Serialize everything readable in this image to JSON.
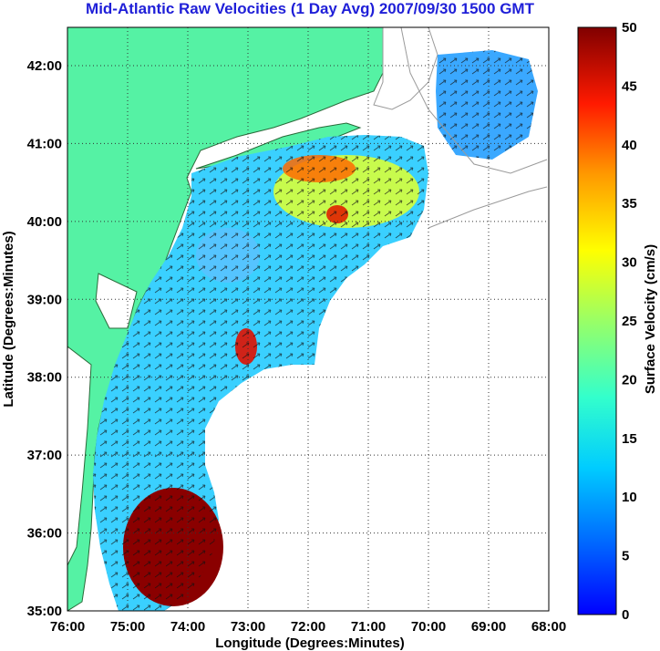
{
  "title": "Mid-Atlantic Raw Velocities (1 Day Avg) 2007/09/30 1500 GMT",
  "xlabel": "Longitude (Degrees:Minutes)",
  "ylabel": "Latitude (Degrees:Minutes)",
  "colorbar_label": "Surface Velocity (cm/s)",
  "lon_ticks": [
    "76:00",
    "75:00",
    "74:00",
    "73:00",
    "72:00",
    "71:00",
    "70:00",
    "69:00",
    "68:00"
  ],
  "lat_ticks": [
    "42:00",
    "41:00",
    "40:00",
    "39:00",
    "38:00",
    "37:00",
    "36:00",
    "35:00"
  ],
  "colorbar_ticks": [
    "50",
    "45",
    "40",
    "35",
    "30",
    "25",
    "20",
    "15",
    "10",
    "5",
    "0"
  ],
  "colors": {
    "land": "#55f2a4",
    "coast": "#2a6a3a",
    "title": "#1f1fd8",
    "bathymetry": "#9a9a9a"
  },
  "chart_data": {
    "type": "heatmap",
    "xlim": [
      -76,
      -68
    ],
    "ylim": [
      35,
      42.5
    ],
    "colorbar_range": [
      0,
      50
    ],
    "colormap": "jet"
  }
}
